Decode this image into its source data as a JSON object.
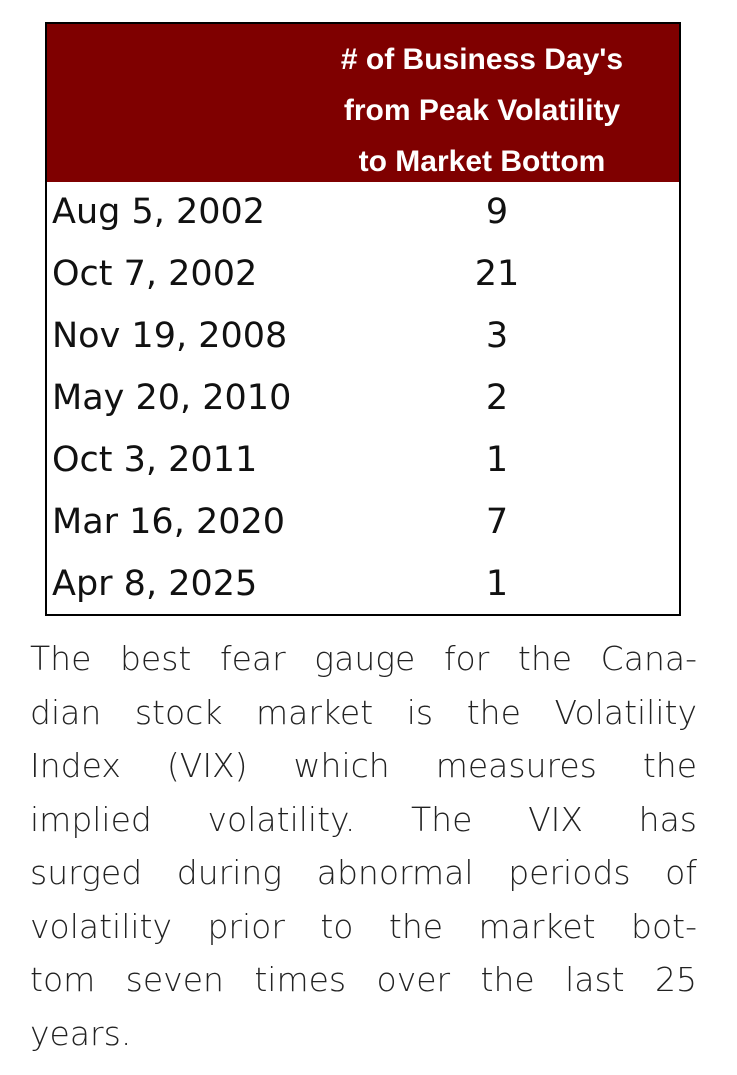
{
  "table": {
    "header": [
      "# of Business Day's",
      "from Peak Volatility",
      "to Market Bottom"
    ],
    "rows": [
      [
        "Aug 5, 2002",
        "9"
      ],
      [
        "Oct 7, 2002",
        "21"
      ],
      [
        "Nov 19, 2008",
        "3"
      ],
      [
        "May 20, 2010",
        "2"
      ],
      [
        "Oct 3, 2011",
        "1"
      ],
      [
        "Mar 16, 2020",
        "7"
      ],
      [
        "Apr 8, 2025",
        "1"
      ]
    ]
  },
  "paragraph": {
    "lines": [
      "The best fear gauge for the Cana-",
      "dian stock market is the Volatility",
      "Index (VIX) which measures the",
      "implied volatility. The VIX has",
      "surged during abnormal periods of",
      "volatility prior to the market bot-",
      "tom seven times over the last 25",
      "years."
    ]
  }
}
